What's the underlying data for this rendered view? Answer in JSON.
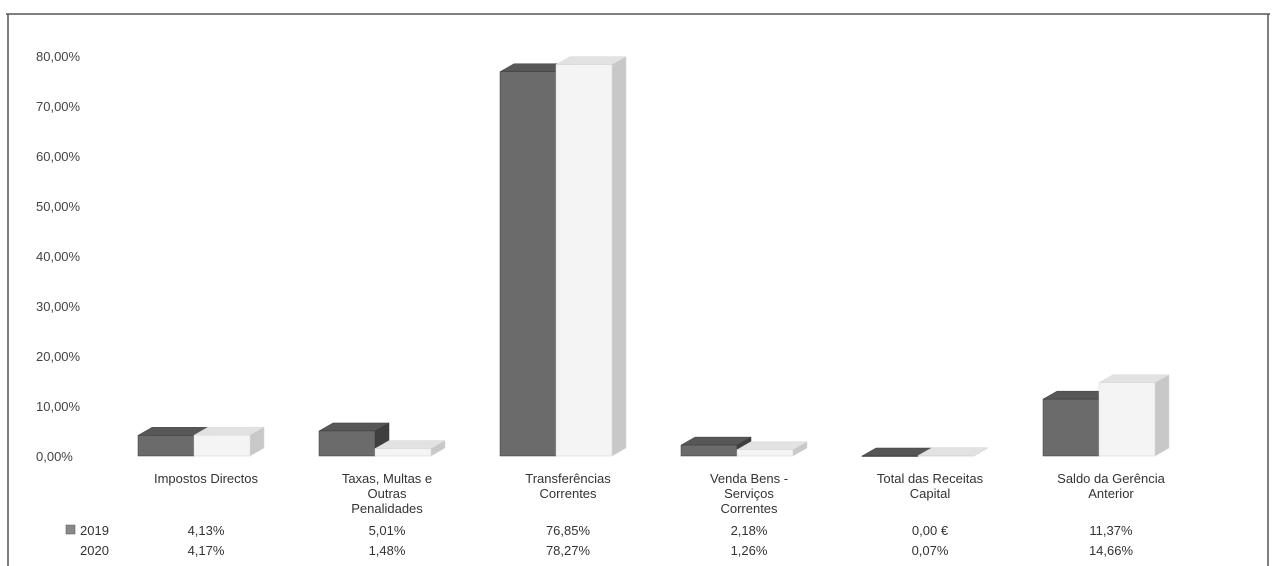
{
  "chart_data": {
    "type": "bar",
    "title": "",
    "xlabel": "",
    "ylabel": "",
    "ylim": [
      0,
      80
    ],
    "y_ticks": [
      "0,00%",
      "10,00%",
      "20,00%",
      "30,00%",
      "40,00%",
      "50,00%",
      "60,00%",
      "70,00%",
      "80,00%"
    ],
    "categories": [
      [
        "Impostos Directos"
      ],
      [
        "Taxas, Multas e",
        "Outras",
        "Penalidades"
      ],
      [
        "Transferências",
        "Correntes"
      ],
      [
        "Venda Bens -",
        "Serviços",
        "Correntes"
      ],
      [
        "Total das Receitas",
        "Capital"
      ],
      [
        "Saldo da Gerência",
        "Anterior"
      ]
    ],
    "series": [
      {
        "name": "2019",
        "color": "#6b6b6b",
        "values": [
          4.13,
          5.01,
          76.85,
          2.18,
          0.0,
          11.37
        ],
        "labels": [
          "4,13%",
          "5,01%",
          "76,85%",
          "2,18%",
          "0,00 €",
          "11,37%"
        ]
      },
      {
        "name": "2020",
        "color": "#f4f4f4",
        "values": [
          4.17,
          1.48,
          78.27,
          1.26,
          0.07,
          14.66
        ],
        "labels": [
          "4,17%",
          "1,48%",
          "78,27%",
          "1,26%",
          "0,07%",
          "14,66%"
        ]
      }
    ],
    "grid": false,
    "legend": "data-table-bottom"
  }
}
